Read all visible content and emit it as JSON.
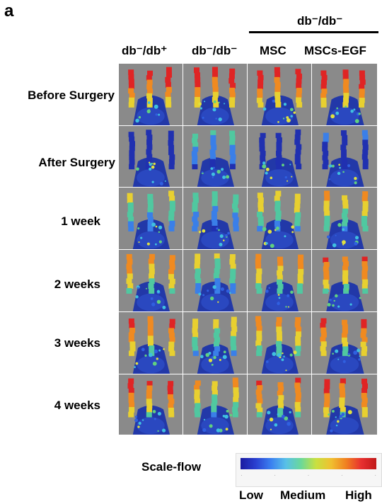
{
  "panel_label": "a",
  "group_header": "db⁻/db⁻",
  "columns": [
    "db⁻/db⁺",
    "db⁻/db⁻",
    "MSC",
    "MSCs-EGF"
  ],
  "rows": [
    "Before Surgery",
    "After Surgery",
    "1 week",
    "2 weeks",
    "3 weeks",
    "4 weeks"
  ],
  "scale": {
    "title": "Scale-flow",
    "low": "Low",
    "medium": "Medium",
    "high": "High"
  },
  "colors": {
    "background_tissue": "#8a8a8a",
    "low_flow": "#1a1aa0",
    "high_flow": "#e02020"
  }
}
